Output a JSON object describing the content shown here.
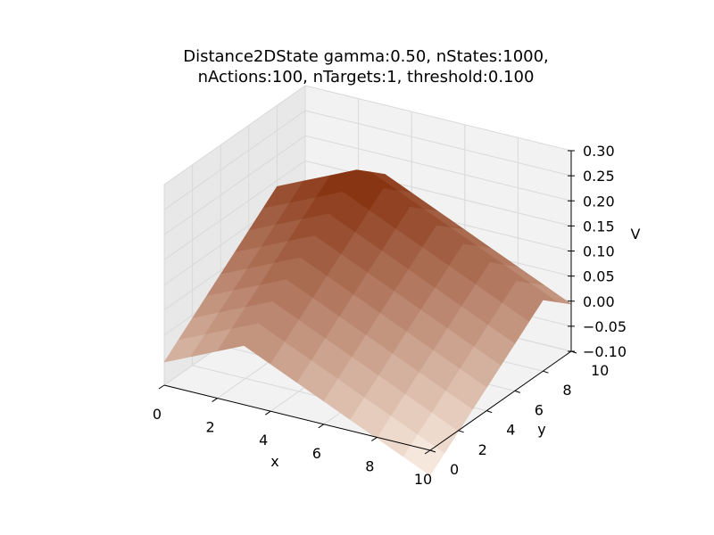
{
  "chart_data": {
    "type": "surface3d",
    "title_lines": [
      "Distance2DState gamma:0.50, nStates:1000,",
      "nActions:100, nTargets:1, threshold:0.100"
    ],
    "xlabel": "x",
    "ylabel": "y",
    "zlabel": "V",
    "xlim": [
      0,
      10
    ],
    "ylim": [
      0,
      10
    ],
    "zlim": [
      -0.1,
      0.3
    ],
    "x_ticks": [
      "0",
      "2",
      "4",
      "6",
      "8",
      "10"
    ],
    "y_ticks": [
      "0",
      "2",
      "4",
      "6",
      "8",
      "10"
    ],
    "z_ticks": [
      "−0.10",
      "−0.05",
      "0.00",
      "0.05",
      "0.10",
      "0.15",
      "0.20",
      "0.25",
      "0.30"
    ],
    "grid": true,
    "colormap": "Oranges",
    "peak": {
      "x": 3,
      "y": 8,
      "value": 0.21
    },
    "surface_formula": "V = 0.21 - 0.024 * (|x-3| + |y-8|)",
    "grid_points": [
      0,
      1,
      2,
      3,
      4,
      5,
      6,
      7,
      8,
      9,
      10
    ]
  },
  "colors": {
    "pane": "#f2f2f2",
    "pane_side": "#e8e8e8",
    "grid": "#d9d9d9",
    "cmap_low": "#fff5eb",
    "cmap_high": "#7f2704"
  }
}
